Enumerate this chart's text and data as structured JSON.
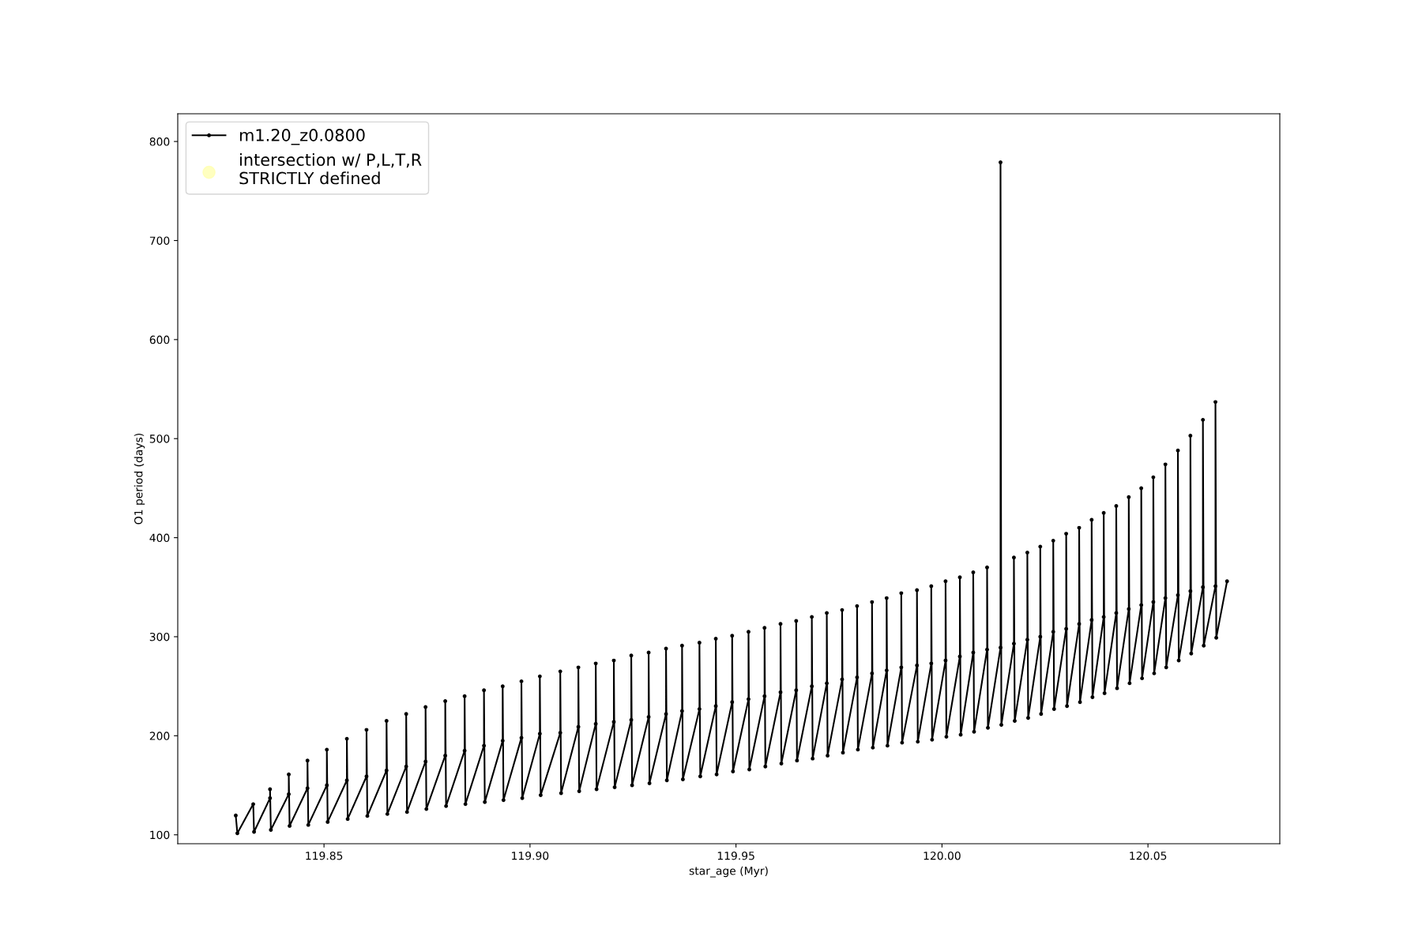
{
  "chart_data": {
    "type": "line",
    "xlabel": "star_age (Myr)",
    "ylabel": "O1 period (days)",
    "xlim": [
      119.8145,
      120.082
    ],
    "ylim": [
      91,
      828
    ],
    "xticks": [
      {
        "value": 119.85,
        "label": "119.85"
      },
      {
        "value": 119.9,
        "label": "119.90"
      },
      {
        "value": 119.95,
        "label": "119.95"
      },
      {
        "value": 120.0,
        "label": "120.00"
      },
      {
        "value": 120.05,
        "label": "120.05"
      }
    ],
    "yticks": [
      100,
      200,
      300,
      400,
      500,
      600,
      700,
      800
    ],
    "grid": false,
    "legend": "top left",
    "series": [
      {
        "name": "m1.20_z0.0800",
        "color": "#000000",
        "marker": "circle",
        "line_style": "solid",
        "x": [
          119.82858,
          119.82897,
          119.83282,
          119.83302,
          119.8369,
          119.8369,
          119.8371,
          119.84145,
          119.84145,
          119.84165,
          119.84599,
          119.84599,
          119.84619,
          119.85069,
          119.85069,
          119.85089,
          119.85555,
          119.85555,
          119.85575,
          119.86032,
          119.86032,
          119.86052,
          119.86518,
          119.86518,
          119.86538,
          119.86995,
          119.86995,
          119.87015,
          119.87465,
          119.87465,
          119.87485,
          119.87943,
          119.87943,
          119.87963,
          119.88413,
          119.88413,
          119.88433,
          119.88883,
          119.88883,
          119.88903,
          119.89337,
          119.89337,
          119.89357,
          119.89792,
          119.89792,
          119.89812,
          119.90239,
          119.90239,
          119.90259,
          119.90735,
          119.90735,
          119.90755,
          119.91174,
          119.91174,
          119.91194,
          119.91596,
          119.91596,
          119.91616,
          119.92035,
          119.92035,
          119.92055,
          119.92458,
          119.92458,
          119.92478,
          119.9288,
          119.9288,
          119.929,
          119.93302,
          119.93302,
          119.93322,
          119.93691,
          119.93691,
          119.93711,
          119.94113,
          119.94113,
          119.94133,
          119.9451,
          119.9451,
          119.9453,
          119.94907,
          119.94907,
          119.94927,
          119.95304,
          119.95304,
          119.95324,
          119.95693,
          119.95693,
          119.95713,
          119.96081,
          119.96081,
          119.96101,
          119.96461,
          119.96461,
          119.96481,
          119.96841,
          119.96841,
          119.96861,
          119.97204,
          119.97204,
          119.97224,
          119.97576,
          119.97576,
          119.97596,
          119.97939,
          119.97939,
          119.97959,
          119.98302,
          119.98302,
          119.98322,
          119.98657,
          119.98657,
          119.98677,
          119.99012,
          119.99012,
          119.99032,
          119.99393,
          119.99393,
          119.99413,
          119.9974,
          119.9974,
          119.9976,
          120.00087,
          120.00087,
          120.00107,
          120.00434,
          120.00434,
          120.00454,
          120.00759,
          120.00759,
          120.00779,
          120.01095,
          120.01095,
          120.01115,
          120.01421,
          120.01421,
          120.01441,
          120.01746,
          120.01746,
          120.01766,
          120.02072,
          120.02072,
          120.02092,
          120.02386,
          120.02386,
          120.02406,
          120.02701,
          120.02701,
          120.02721,
          120.03015,
          120.03015,
          120.03035,
          120.0333,
          120.0333,
          120.0335,
          120.03633,
          120.03633,
          120.03653,
          120.03926,
          120.03926,
          120.03946,
          120.0423,
          120.0423,
          120.0425,
          120.04534,
          120.04534,
          120.04554,
          120.04837,
          120.04837,
          120.04857,
          120.0513,
          120.0513,
          120.0515,
          120.05423,
          120.05423,
          120.05443,
          120.05727,
          120.05727,
          120.05747,
          120.0603,
          120.0603,
          120.0605,
          120.06334,
          120.06334,
          120.06354,
          120.06638,
          120.06638,
          120.06658,
          120.0692
        ],
        "values": [
          119.5,
          101.5,
          131,
          103,
          137,
          146,
          105,
          141,
          161,
          109,
          147,
          175,
          110,
          150,
          186,
          113,
          155,
          197,
          116,
          159,
          206,
          119,
          165,
          215,
          121,
          169,
          222,
          123,
          174,
          229,
          126,
          180,
          235,
          129,
          185,
          240,
          131,
          190,
          246,
          133,
          195,
          250,
          135,
          198,
          255,
          137,
          202,
          260,
          140,
          203,
          265,
          142,
          209,
          269,
          144,
          212,
          273,
          146,
          214,
          276,
          148,
          216,
          281,
          150,
          219,
          284,
          152,
          222,
          288,
          155,
          225,
          291,
          156,
          227,
          294,
          159,
          230,
          298,
          161,
          234,
          301,
          164,
          237,
          305,
          166,
          240,
          309,
          169,
          244,
          313,
          172,
          246,
          316,
          175,
          250,
          320,
          177,
          253,
          324,
          180,
          257,
          327,
          183,
          259,
          331,
          186,
          263,
          335,
          188,
          266,
          339,
          190,
          269,
          344,
          193,
          271,
          347,
          194,
          273,
          351,
          196,
          276,
          356,
          199,
          280,
          360,
          201,
          284,
          365,
          204,
          287,
          370,
          208,
          289,
          779,
          211,
          293,
          380,
          215,
          297,
          385,
          218,
          300,
          391,
          222,
          305,
          397,
          227,
          308,
          404,
          230,
          313,
          410,
          234,
          317,
          418,
          239,
          320,
          425,
          243,
          324,
          432,
          248,
          328,
          441,
          253,
          332,
          450,
          258,
          335,
          461,
          263,
          339,
          474,
          269,
          342,
          488,
          276,
          346,
          503,
          283,
          350,
          519,
          291,
          351,
          537,
          299,
          356
        ]
      },
      {
        "name": "intersection w/ P,L,T,R\nSTRICTLY defined",
        "type": "scatter",
        "color": "#ffffb0",
        "marker": "circle"
      }
    ]
  }
}
